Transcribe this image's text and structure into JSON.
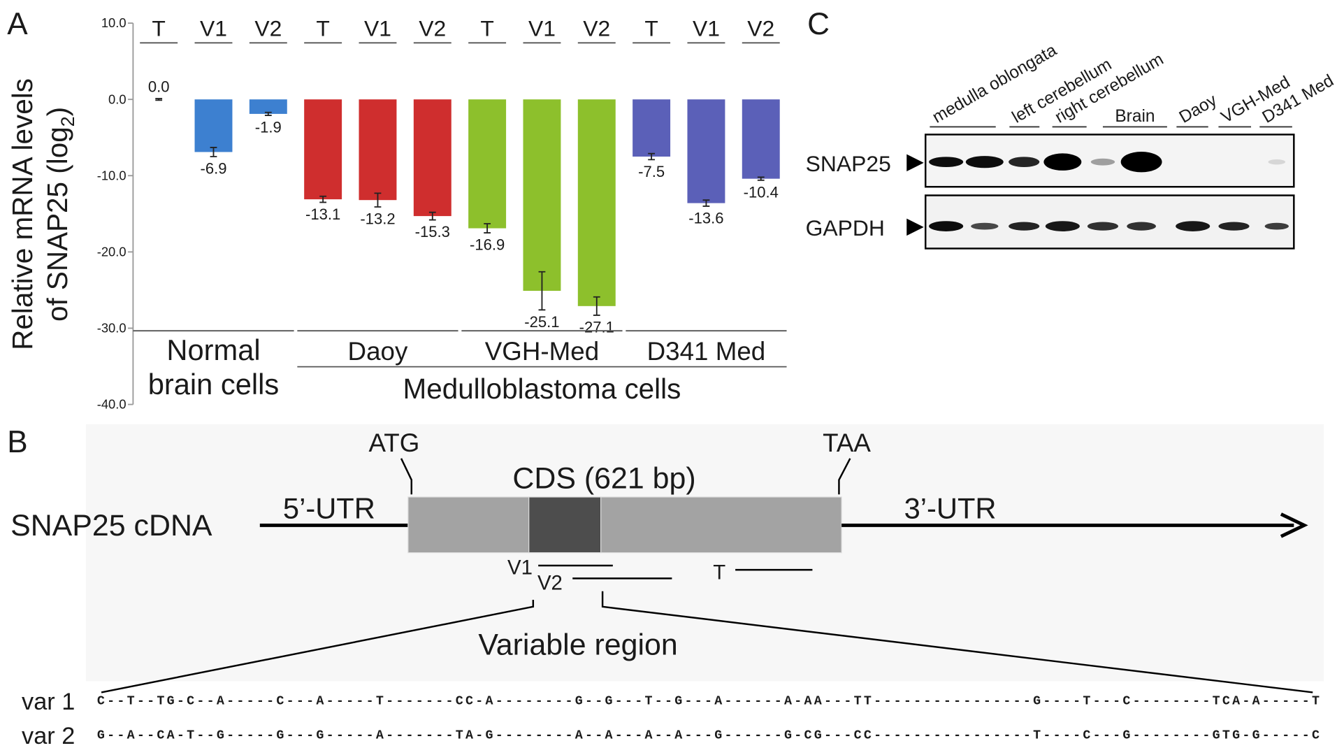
{
  "panel_labels": [
    "A",
    "B",
    "C"
  ],
  "chart_data": {
    "type": "bar",
    "ylabel_parts": [
      "Relative mRNA levels",
      "of SNAP25 (log",
      "2",
      ")"
    ],
    "categories": [
      "T",
      "V1",
      "V2",
      "T",
      "V1",
      "V2",
      "T",
      "V1",
      "V2",
      "T",
      "V1",
      "V2"
    ],
    "values": [
      0,
      -6.9,
      -1.9,
      -13.1,
      -13.2,
      -15.3,
      -16.9,
      -25.1,
      -27.1,
      -7.5,
      -13.6,
      -10.4
    ],
    "value_labels": [
      "0.0",
      "-6.9",
      "-1.9",
      "-13.1",
      "-13.2",
      "-15.3",
      "-16.9",
      "-25.1",
      "-27.1",
      "-7.5",
      "-13.6",
      "-10.4"
    ],
    "errors": [
      0.1,
      0.6,
      0.2,
      0.4,
      0.9,
      0.5,
      0.6,
      2.5,
      1.2,
      0.4,
      0.4,
      0.2
    ],
    "colors": [
      "#3d80d0",
      "#3d80d0",
      "#3d80d0",
      "#cf2e2e",
      "#cf2e2e",
      "#cf2e2e",
      "#8dc02c",
      "#8dc02c",
      "#8dc02c",
      "#5b60b8",
      "#5b60b8",
      "#5b60b8"
    ],
    "ylim": [
      -40,
      10
    ],
    "yticks": [
      {
        "value": 10,
        "label": "10.0"
      },
      {
        "value": 0,
        "label": "0.0"
      },
      {
        "value": -10,
        "label": "-10.0"
      },
      {
        "value": -20,
        "label": "-20.0"
      },
      {
        "value": -30,
        "label": "-30.0"
      },
      {
        "value": -40,
        "label": "-40.0"
      }
    ],
    "groups": [
      {
        "label_lines": [
          "Normal",
          "brain cells"
        ]
      },
      {
        "label_lines": [
          "Daoy"
        ]
      },
      {
        "label_lines": [
          "VGH-Med"
        ]
      },
      {
        "label_lines": [
          "D341 Med"
        ]
      }
    ],
    "supergroup": "Medulloblastoma cells"
  },
  "blot": {
    "lanes": [
      "medulla oblongata",
      "left cerebellum",
      "right cerebellum",
      "Brain",
      "Daoy",
      "VGH-Med",
      "D341 Med"
    ],
    "rows": [
      "SNAP25",
      "GAPDH"
    ]
  },
  "diagram": {
    "name": "SNAP25 cDNA",
    "utr5": "5’-UTR",
    "utr3": "3’-UTR",
    "start": "ATG",
    "stop": "TAA",
    "cds": "CDS (621 bp)",
    "probes": [
      "V1",
      "V2",
      "T"
    ],
    "region": "Variable region",
    "variants": [
      {
        "name": "var 1",
        "sequence": "C--T--TG-C--A-----C---A-----T-------CC-A--------G--G---T--G---A------A-AA---TT----------------G----T---C--------TCA-A-----T"
      },
      {
        "name": "var 2",
        "sequence": "G--A--CA-T--G-----G---G-----A-------TA-G--------A--A---A--A---G------G-CG---CC----------------T----C---G--------GTG-G-----C"
      }
    ]
  }
}
